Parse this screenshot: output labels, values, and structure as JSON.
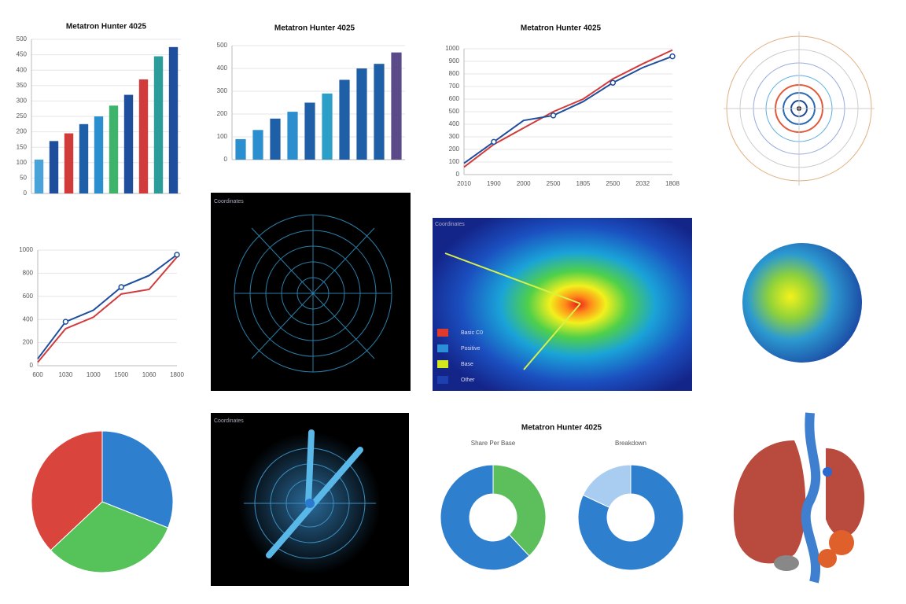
{
  "chart_data": [
    {
      "type": "bar",
      "title": "Metatron Hunter 4025",
      "categories": [
        null,
        null,
        null,
        null,
        null,
        null,
        null,
        null,
        null,
        null
      ],
      "values": [
        110,
        170,
        195,
        225,
        250,
        285,
        320,
        370,
        445,
        475
      ],
      "colors": [
        "#4aa3d8",
        "#1f4e9c",
        "#d23b3b",
        "#1f5fa8",
        "#2b8fcf",
        "#3db36b",
        "#1f4e9c",
        "#d23b3b",
        "#2a9d9a",
        "#1f4e9c"
      ],
      "ylim": [
        0,
        500
      ],
      "yticks": [
        0,
        50,
        100,
        150,
        200,
        250,
        300,
        350,
        400,
        450,
        500
      ],
      "grid": true
    },
    {
      "type": "bar",
      "title": "Metatron Hunter 4025",
      "categories": [
        null,
        null,
        null,
        null,
        null,
        null,
        null,
        null,
        null,
        null
      ],
      "values": [
        90,
        130,
        180,
        210,
        250,
        290,
        350,
        400,
        420,
        470
      ],
      "colors": [
        "#2b8fcf",
        "#2b8fcf",
        "#1f5fa8",
        "#2b8fcf",
        "#1f5fa8",
        "#2b9fc8",
        "#1f5fa8",
        "#1f5fa8",
        "#1f5fa8",
        "#5a4a8a"
      ],
      "ylim": [
        0,
        500
      ],
      "yticks": [
        0,
        100,
        200,
        300,
        400,
        500
      ],
      "grid": true
    },
    {
      "type": "line",
      "title": "Metatron Hunter 4025",
      "categories": [
        "2010",
        "1900",
        "2000",
        "2500",
        "1805",
        "2500",
        "2032",
        "1808"
      ],
      "series": [
        {
          "name": "red",
          "color": "#d23b3b",
          "values": [
            60,
            240,
            370,
            500,
            600,
            760,
            880,
            990
          ]
        },
        {
          "name": "blue",
          "color": "#1f4e9c",
          "values": [
            90,
            260,
            430,
            470,
            580,
            730,
            850,
            940
          ]
        }
      ],
      "ylim": [
        0,
        1000
      ],
      "yticks": [
        0,
        100,
        200,
        300,
        400,
        500,
        600,
        700,
        800,
        900,
        1000
      ],
      "grid": true
    },
    {
      "type": "line",
      "categories": [
        "600",
        "1030",
        "1000",
        "1500",
        "1060",
        "1800"
      ],
      "series": [
        {
          "name": "red",
          "color": "#d23b3b",
          "values": [
            30,
            320,
            420,
            620,
            660,
            940
          ]
        },
        {
          "name": "blue",
          "color": "#1f4e9c",
          "values": [
            60,
            380,
            480,
            680,
            780,
            960
          ]
        }
      ],
      "ylim": [
        0,
        1000
      ],
      "yticks": [
        0,
        200,
        400,
        600,
        800,
        1000
      ],
      "grid": true
    },
    {
      "type": "pie",
      "values": [
        31,
        32,
        37
      ],
      "colors": [
        "#2f7fcf",
        "#55c35a",
        "#d9443c"
      ]
    },
    {
      "type": "donut",
      "title": "Metatron Hunter 4025",
      "charts": [
        {
          "subtitle": "Share Per Base",
          "values": [
            38,
            62
          ],
          "colors": [
            "#5cbf5c",
            "#2f7fcf"
          ]
        },
        {
          "subtitle": "Breakdown",
          "values": [
            82,
            18
          ],
          "colors": [
            "#2f7fcf",
            "#a9cdf0"
          ]
        }
      ]
    }
  ],
  "panels": {
    "radar_top": {
      "label": "Coordinates"
    },
    "heatmap": {
      "label": "Coordinates",
      "legend": [
        {
          "name": "Basic C0",
          "color": "#e03a2c"
        },
        {
          "name": "Positive",
          "color": "#2a8fd8"
        },
        {
          "name": "Base",
          "color": "#d4e61e"
        },
        {
          "name": "Other",
          "color": "#1d3fb0"
        }
      ]
    },
    "radar_bottom": {
      "label": "Coordinates"
    }
  }
}
